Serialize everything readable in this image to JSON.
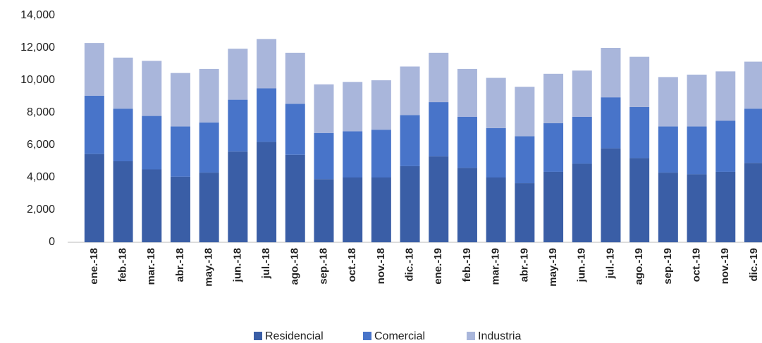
{
  "chart_data": {
    "type": "stacked_bar",
    "categories": [
      "ene.-18",
      "feb.-18",
      "mar.-18",
      "abr.-18",
      "may.-18",
      "jun.-18",
      "jul.-18",
      "ago.-18",
      "sep.-18",
      "oct.-18",
      "nov.-18",
      "dic.-18",
      "ene.-19",
      "feb.-19",
      "mar.-19",
      "abr.-19",
      "may.-19",
      "jun.-19",
      "jul.-19",
      "ago.-19",
      "sep.-19",
      "oct.-19",
      "nov.-19",
      "dic.-19"
    ],
    "series": [
      {
        "name": "Residencial",
        "color": "#3a5ea6",
        "values": [
          5450,
          5000,
          4500,
          4050,
          4300,
          5600,
          6200,
          5400,
          3900,
          4000,
          4000,
          4700,
          5300,
          4600,
          4000,
          3650,
          4350,
          4850,
          5800,
          5200,
          4300,
          4200,
          4350,
          4900
        ]
      },
      {
        "name": "Comercial",
        "color": "#4874c9",
        "values": [
          3600,
          3250,
          3300,
          3100,
          3100,
          3200,
          3300,
          3150,
          2850,
          2850,
          2950,
          3150,
          3350,
          3150,
          3050,
          2900,
          3000,
          2900,
          3150,
          3150,
          2850,
          2950,
          3150,
          3350
        ]
      },
      {
        "name": "Industria",
        "color": "#a9b6db",
        "values": [
          3250,
          3150,
          3400,
          3300,
          3300,
          3150,
          3050,
          3150,
          3000,
          3050,
          3050,
          3000,
          3050,
          2950,
          3100,
          3050,
          3050,
          2850,
          3050,
          3100,
          3050,
          3200,
          3050,
          2900
        ]
      }
    ],
    "ylim": [
      0,
      14000
    ],
    "yticks": [
      0,
      {
        "value": 2000,
        "label": "2,000"
      },
      {
        "value": 4000,
        "label": "4,000"
      },
      {
        "value": 6000,
        "label": "6,000"
      },
      {
        "value": 8000,
        "label": "8,000"
      },
      {
        "value": 10000,
        "label": "10,000"
      },
      {
        "value": 12000,
        "label": "12,000"
      },
      {
        "value": 14000,
        "label": "14,000"
      }
    ],
    "grid": false,
    "legend": "bottom"
  }
}
